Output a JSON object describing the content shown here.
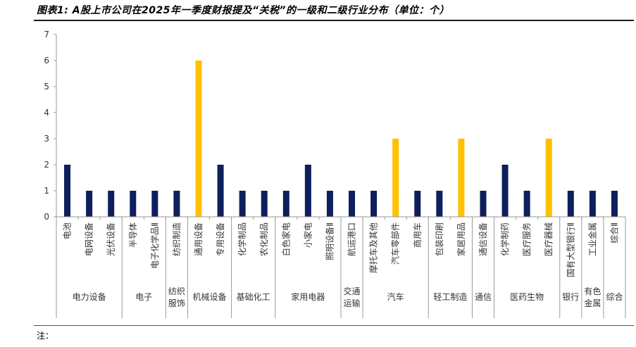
{
  "title": "图表1: A股上市公司在2025年一季度财报提及“关税”的一级和二级行业分布（单位：个）",
  "note": "注：",
  "chart_data": {
    "type": "bar",
    "title": "图表1: A股上市公司在2025年一季度财报提及“关税”的一级和二级行业分布（单位：个）",
    "ylim": [
      0,
      7
    ],
    "yticks": [
      0,
      1,
      2,
      3,
      4,
      5,
      6,
      7
    ],
    "grid": false,
    "legend": "none",
    "colors": {
      "default": "#0e1f5b",
      "highlight": "#ffc000"
    },
    "categories": [
      "电池",
      "电网设备",
      "光伏设备",
      "半导体",
      "电子化学品Ⅱ",
      "纺织制造",
      "通用设备",
      "专用设备",
      "化学制品",
      "农化制品",
      "白色家电",
      "小家电",
      "照明设备Ⅱ",
      "航运港口",
      "摩托车及其他",
      "汽车零部件",
      "商用车",
      "包装印刷",
      "家居用品",
      "通信设备",
      "化学制药",
      "医疗服务",
      "医疗器械",
      "国有大型银行Ⅱ",
      "工业金属",
      "综合Ⅱ"
    ],
    "values": [
      2,
      1,
      1,
      1,
      1,
      1,
      6,
      2,
      1,
      1,
      1,
      2,
      1,
      1,
      1,
      3,
      1,
      1,
      3,
      1,
      2,
      1,
      3,
      1,
      1,
      1
    ],
    "highlighted": [
      false,
      false,
      false,
      false,
      false,
      false,
      true,
      false,
      false,
      false,
      false,
      false,
      false,
      false,
      false,
      true,
      false,
      false,
      true,
      false,
      false,
      false,
      true,
      false,
      false,
      false
    ],
    "groups": [
      {
        "label": "电力设备",
        "count": 3
      },
      {
        "label": "电子",
        "count": 2
      },
      {
        "label": "纺织服饰",
        "count": 1
      },
      {
        "label": "机械设备",
        "count": 2
      },
      {
        "label": "基础化工",
        "count": 2
      },
      {
        "label": "家用电器",
        "count": 3
      },
      {
        "label": "交通运输",
        "count": 1
      },
      {
        "label": "汽车",
        "count": 3
      },
      {
        "label": "轻工制造",
        "count": 2
      },
      {
        "label": "通信",
        "count": 1
      },
      {
        "label": "医药生物",
        "count": 3
      },
      {
        "label": "银行",
        "count": 1
      },
      {
        "label": "有色金属",
        "count": 1
      },
      {
        "label": "综合",
        "count": 1
      }
    ]
  }
}
